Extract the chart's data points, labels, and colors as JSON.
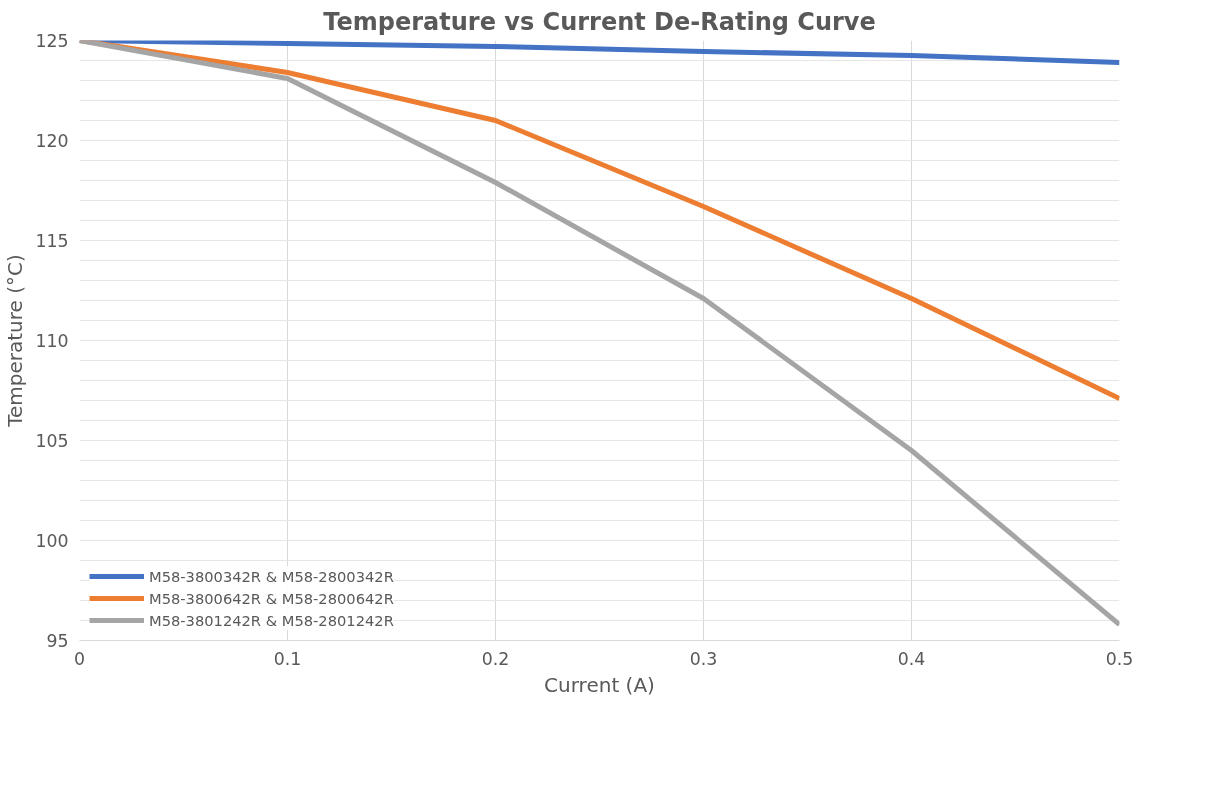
{
  "chart_data": {
    "type": "line",
    "title": "Temperature vs Current De-Rating Curve",
    "xlabel": "Current (A)",
    "ylabel": "Temperature (°C)",
    "x": [
      0,
      0.1,
      0.2,
      0.3,
      0.4,
      0.5
    ],
    "series": [
      {
        "name": "M58-3800342R & M58-2800342R",
        "color": "#4472c4",
        "values": [
          125,
          124.85,
          124.7,
          124.45,
          124.25,
          123.9
        ]
      },
      {
        "name": "M58-3800642R & M58-2800642R",
        "color": "#ed7d31",
        "values": [
          125,
          123.4,
          121,
          116.7,
          112.1,
          107.1
        ]
      },
      {
        "name": "M58-3801242R & M58-2801242R",
        "color": "#a5a5a5",
        "values": [
          125,
          123.1,
          117.9,
          112.1,
          104.5,
          95.8
        ]
      }
    ],
    "xlim": [
      0,
      0.5
    ],
    "xticks": [
      0,
      0.1,
      0.2,
      0.3,
      0.4,
      0.5
    ],
    "ylim": [
      95,
      125
    ],
    "yticks": [
      95,
      {
        "value": 96,
        "label": null
      },
      {
        "value": 97,
        "label": null
      },
      {
        "value": 98,
        "label": null
      },
      {
        "value": 99,
        "label": null
      },
      100,
      {
        "value": 101,
        "label": null
      },
      {
        "value": 102,
        "label": null
      },
      {
        "value": 103,
        "label": null
      },
      {
        "value": 104,
        "label": null
      },
      105,
      {
        "value": 106,
        "label": null
      },
      {
        "value": 107,
        "label": null
      },
      {
        "value": 108,
        "label": null
      },
      {
        "value": 109,
        "label": null
      },
      110,
      {
        "value": 111,
        "label": null
      },
      {
        "value": 112,
        "label": null
      },
      {
        "value": 113,
        "label": null
      },
      {
        "value": 114,
        "label": null
      },
      115,
      {
        "value": 116,
        "label": null
      },
      {
        "value": 117,
        "label": null
      },
      {
        "value": 118,
        "label": null
      },
      {
        "value": 119,
        "label": null
      },
      120,
      {
        "value": 121,
        "label": null
      },
      {
        "value": 122,
        "label": null
      },
      {
        "value": 123,
        "label": null
      },
      {
        "value": 124,
        "label": null
      },
      125
    ],
    "grid": true,
    "legend": "bottom left",
    "marker": "none",
    "line_style": "solid"
  }
}
